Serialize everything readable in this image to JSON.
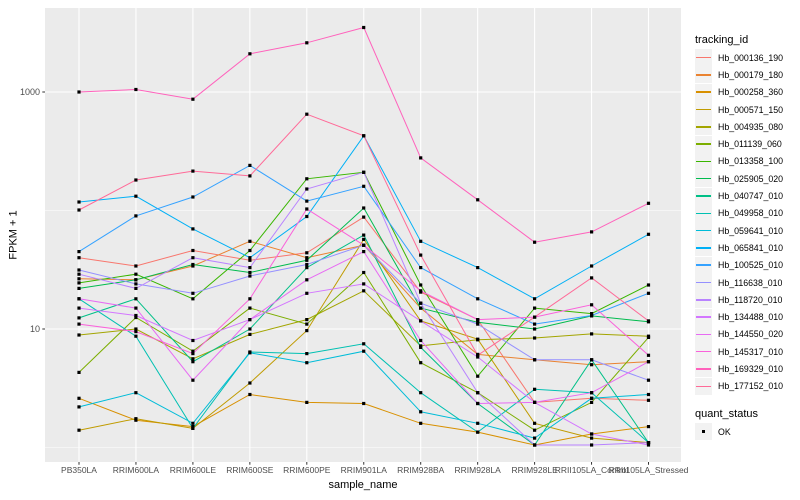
{
  "chart_data": {
    "type": "line",
    "title": "",
    "xlabel": "sample_name",
    "ylabel": "FPKM + 1",
    "y_scale": "log10",
    "y_major_ticks": [
      10,
      1000
    ],
    "y_minor_gridlines": [
      1,
      100
    ],
    "grid": true,
    "panel_background": "#EBEBEB",
    "gridline_color": "#FFFFFF",
    "tick_label_color": "#4D4D4D",
    "point_color": "#000000",
    "point_shape": "square",
    "x_categories": [
      "PB350LA",
      "RRIM600LA",
      "RRIM600LE",
      "RRIM600SE",
      "RRIM600PE",
      "RRIM901LA",
      "RRIM928BA",
      "RRIM928LA",
      "RRIM928LE",
      "RRII105LA_Control",
      "RRII105LA_Stressed"
    ],
    "legend": {
      "title": "tracking_id",
      "position": "right"
    },
    "quant_legend": {
      "title": "quant_status",
      "value": "OK"
    },
    "series": [
      {
        "name": "Hb_000136_190",
        "color": "#F8766D",
        "values": [
          40,
          34,
          46,
          38,
          44,
          88,
          20.5,
          12,
          2.4,
          2.6,
          2.5
        ]
      },
      {
        "name": "Hb_000179_180",
        "color": "#EA8331",
        "values": [
          26.5,
          26,
          34,
          55,
          40,
          51,
          15,
          6.1,
          5.5,
          5.0,
          5.3
        ]
      },
      {
        "name": "Hb_000258_360",
        "color": "#D89000",
        "values": [
          2.6,
          1.7,
          1.5,
          2.8,
          2.4,
          2.35,
          1.6,
          1.35,
          1.05,
          1.3,
          1.5
        ]
      },
      {
        "name": "Hb_000571_150",
        "color": "#C09B00",
        "values": [
          1.4,
          1.75,
          1.45,
          3.5,
          9.7,
          57,
          11.7,
          8.2,
          1.6,
          1.2,
          1.1
        ]
      },
      {
        "name": "Hb_004935_080",
        "color": "#A3A500",
        "values": [
          8.9,
          10,
          5.6,
          9,
          12,
          21,
          7.2,
          8.1,
          8.4,
          9.1,
          8.7
        ]
      },
      {
        "name": "Hb_011139_060",
        "color": "#7CAE00",
        "values": [
          4.3,
          12.5,
          6.5,
          15,
          11,
          30,
          5.2,
          2.9,
          1.4,
          2.4,
          8.5
        ]
      },
      {
        "name": "Hb_013358_100",
        "color": "#39B600",
        "values": [
          24.5,
          29,
          18,
          46,
          185,
          210,
          23.5,
          4,
          15,
          13.5,
          23.5
        ]
      },
      {
        "name": "Hb_025905_020",
        "color": "#00BB4E",
        "values": [
          22,
          26,
          35,
          30,
          38,
          105,
          15,
          11.4,
          10,
          12.9,
          11.5
        ]
      },
      {
        "name": "Hb_040747_010",
        "color": "#00C087",
        "values": [
          12.4,
          18,
          5.3,
          10,
          33,
          62,
          7,
          2.35,
          1.05,
          5.5,
          1.1
        ]
      },
      {
        "name": "Hb_049958_010",
        "color": "#00C0B2",
        "values": [
          18,
          8.7,
          1.45,
          6.4,
          6.2,
          7.5,
          2.9,
          1.35,
          3.1,
          2.9,
          1.1
        ]
      },
      {
        "name": "Hb_059641_010",
        "color": "#00BCD8",
        "values": [
          2.2,
          2.9,
          1.6,
          6.3,
          5.2,
          6.5,
          2.0,
          1.6,
          1.2,
          2.6,
          2.8
        ]
      },
      {
        "name": "Hb_065841_010",
        "color": "#00B0F6",
        "values": [
          118,
          132,
          70,
          40,
          89,
          427,
          55,
          33,
          18,
          34,
          63
        ]
      },
      {
        "name": "Hb_100525_010",
        "color": "#35A2FF",
        "values": [
          45,
          90,
          130,
          240,
          120,
          160,
          33,
          18,
          11,
          13,
          20
        ]
      },
      {
        "name": "Hb_116638_010",
        "color": "#9590FF",
        "values": [
          31.5,
          24,
          20,
          28,
          35,
          51,
          16.5,
          11,
          5.5,
          5.5,
          3.7
        ]
      },
      {
        "name": "Hb_118720_010",
        "color": "#B983FF",
        "values": [
          29,
          22,
          40,
          33,
          152,
          210,
          16.5,
          2.9,
          1.05,
          1.05,
          1.1
        ]
      },
      {
        "name": "Hb_134488_010",
        "color": "#D376FF",
        "values": [
          15,
          13,
          8,
          12,
          20,
          24,
          11.7,
          5.8,
          2.4,
          1.3,
          1.05
        ]
      },
      {
        "name": "Hb_144550_020",
        "color": "#E76BF3",
        "values": [
          18,
          15,
          3.7,
          12,
          26,
          45,
          8,
          2.35,
          2.4,
          2.9,
          5.3
        ]
      },
      {
        "name": "Hb_145317_010",
        "color": "#FA62DB",
        "values": [
          11,
          9.5,
          6.2,
          18,
          103,
          51,
          21,
          12,
          12.6,
          16,
          6.0
        ]
      },
      {
        "name": "Hb_169329_010",
        "color": "#FF62BC",
        "values": [
          1000,
          1050,
          870,
          2100,
          2600,
          3500,
          278,
          123,
          54,
          66,
          115
        ]
      },
      {
        "name": "Hb_177152_010",
        "color": "#FF6A98",
        "values": [
          101,
          181,
          215,
          196,
          650,
          427,
          42,
          6,
          12.6,
          27,
          11.7
        ]
      }
    ]
  }
}
